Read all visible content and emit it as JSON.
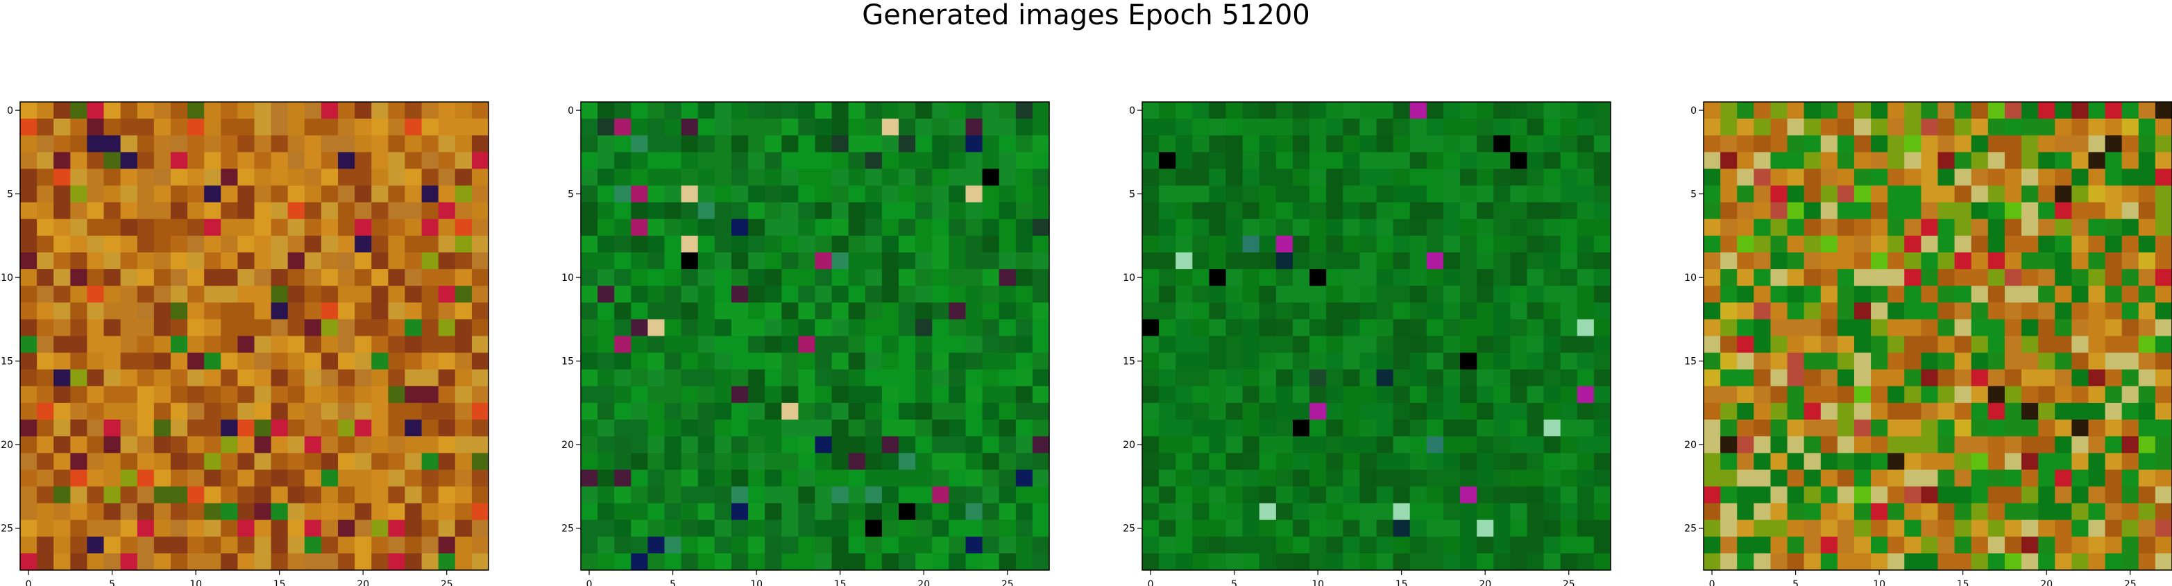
{
  "figure": {
    "title": "Generated images Epoch 51200"
  },
  "chart_data": [
    {
      "type": "heatmap",
      "image_size": 28,
      "xticks": [
        0,
        5,
        10,
        15,
        20,
        25
      ],
      "yticks": [
        0,
        5,
        10,
        15,
        20,
        25
      ],
      "palette": [
        "#c8821a",
        "#b86a14",
        "#d99a22",
        "#a85a10",
        "#c07a20",
        "#9a4a12",
        "#d08a1e",
        "#b87a28",
        "#8a3a14",
        "#c89a30"
      ],
      "accents": [
        "#2a1450",
        "#c81a3a",
        "#1a8a20",
        "#6a1a2a",
        "#e04a1a",
        "#4a6a10",
        "#8aa010"
      ],
      "accent_rate": 0.14,
      "seed": 11
    },
    {
      "type": "heatmap",
      "image_size": 28,
      "xticks": [
        0,
        5,
        10,
        15,
        20,
        25
      ],
      "yticks": [
        0,
        5,
        10,
        15,
        20,
        25
      ],
      "palette": [
        "#0a7a1a",
        "#0a8a18",
        "#06661a",
        "#109a22",
        "#0c7020",
        "#0a5a16",
        "#148a28",
        "#0a9420",
        "#0e6a1c",
        "#12801e"
      ],
      "accents": [
        "#0a1a5a",
        "#000000",
        "#1a3a2a",
        "#4a1a3a",
        "#aa1a6a",
        "#2a8a5a",
        "#e0c890"
      ],
      "accent_rate": 0.07,
      "seed": 23
    },
    {
      "type": "heatmap",
      "image_size": 28,
      "xticks": [
        0,
        5,
        10,
        15,
        20,
        25
      ],
      "yticks": [
        0,
        5,
        10,
        15,
        20,
        25
      ],
      "palette": [
        "#0a7a14",
        "#086818",
        "#0a8a1a",
        "#06701a",
        "#0c6016",
        "#0a7c20",
        "#108a22",
        "#0a5c14",
        "#0c721a",
        "#0e841e"
      ],
      "accents": [
        "#0a2a3a",
        "#000000",
        "#9adab0",
        "#2a7a6a",
        "#b01aa0",
        "#1a4a2a"
      ],
      "accent_rate": 0.04,
      "seed": 37
    },
    {
      "type": "heatmap",
      "image_size": 28,
      "xticks": [
        0,
        5,
        10,
        15,
        20,
        25
      ],
      "yticks": [
        0,
        5,
        10,
        15,
        20,
        25
      ],
      "palette": [
        "#c8821a",
        "#b86a14",
        "#1a8a1a",
        "#0a7a18",
        "#d09a22",
        "#a85a10",
        "#7aa012",
        "#12901e",
        "#c07a20",
        "#c8c070"
      ],
      "accents": [
        "#8a1a1a",
        "#c81a2a",
        "#2a1a0a",
        "#60c010",
        "#b84a3a",
        "#d0b020"
      ],
      "accent_rate": 0.1,
      "seed": 53
    }
  ]
}
